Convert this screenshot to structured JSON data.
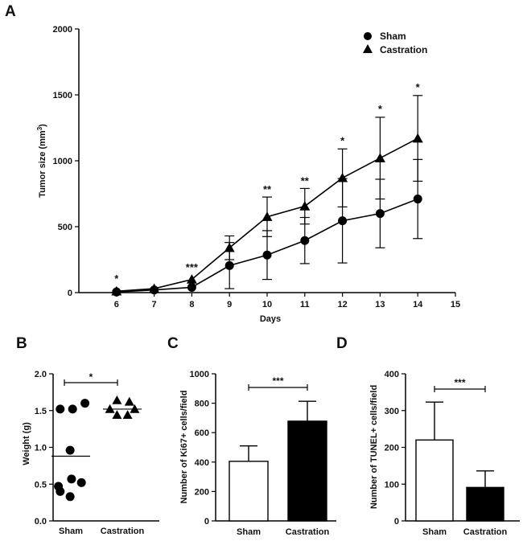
{
  "panels": {
    "a": "A",
    "b": "B",
    "c": "C",
    "d": "D"
  },
  "chart_data": [
    {
      "id": "A",
      "type": "line",
      "title": "",
      "xlabel": "Days",
      "ylabel": "Tumor size (mm3)",
      "ylabel_main": "Tumor size (mm",
      "ylabel_sup": "3",
      "ylabel_end": ")",
      "xlim": [
        5,
        15
      ],
      "ylim": [
        0,
        2000
      ],
      "xticks": [
        "6",
        "7",
        "8",
        "9",
        "10",
        "11",
        "12",
        "13",
        "14",
        "15"
      ],
      "yticks": [
        "0",
        "500",
        "1000",
        "1500",
        "2000"
      ],
      "x": [
        6,
        7,
        8,
        9,
        10,
        11,
        12,
        13,
        14
      ],
      "series": [
        {
          "name": "Sham",
          "marker": "circle",
          "values": [
            5,
            20,
            40,
            205,
            285,
            395,
            545,
            600,
            710
          ],
          "errors": [
            0,
            0,
            0,
            175,
            185,
            175,
            320,
            260,
            300
          ]
        },
        {
          "name": "Castration",
          "marker": "triangle",
          "values": [
            10,
            30,
            100,
            340,
            575,
            655,
            870,
            1020,
            1170
          ],
          "errors": [
            0,
            0,
            0,
            90,
            150,
            135,
            220,
            310,
            325
          ]
        }
      ],
      "annotations": [
        {
          "x": 6,
          "y": 80,
          "text": "*"
        },
        {
          "x": 8,
          "y": 165,
          "text": "***"
        },
        {
          "x": 10,
          "y": 755,
          "text": "**"
        },
        {
          "x": 11,
          "y": 820,
          "text": "**"
        },
        {
          "x": 12,
          "y": 1125,
          "text": "*"
        },
        {
          "x": 13,
          "y": 1365,
          "text": "*"
        },
        {
          "x": 14,
          "y": 1530,
          "text": "*"
        }
      ],
      "legend": "top-right"
    },
    {
      "id": "B",
      "type": "scatter",
      "ylabel": "Weight (g)",
      "ylim": [
        0,
        2.0
      ],
      "yticks": [
        "0.0",
        "0.5",
        "1.0",
        "1.5",
        "2.0"
      ],
      "categories": [
        "Sham",
        "Castration"
      ],
      "groups": [
        {
          "name": "Sham",
          "marker": "circle",
          "mean": 0.88,
          "points": [
            {
              "dx": -0.3,
              "y": 1.52
            },
            {
              "dx": 0.05,
              "y": 1.52
            },
            {
              "dx": 0.4,
              "y": 1.6
            },
            {
              "dx": -0.02,
              "y": 0.96
            },
            {
              "dx": 0.02,
              "y": 0.57
            },
            {
              "dx": -0.35,
              "y": 0.47
            },
            {
              "dx": 0.3,
              "y": 0.52
            },
            {
              "dx": -0.3,
              "y": 0.4
            },
            {
              "dx": -0.02,
              "y": 0.33
            }
          ]
        },
        {
          "name": "Castration",
          "marker": "triangle",
          "mean": 1.52,
          "points": [
            {
              "dx": -0.15,
              "y": 1.64
            },
            {
              "dx": 0.2,
              "y": 1.62
            },
            {
              "dx": -0.35,
              "y": 1.52
            },
            {
              "dx": 0.35,
              "y": 1.52
            },
            {
              "dx": -0.15,
              "y": 1.44
            },
            {
              "dx": 0.15,
              "y": 1.44
            }
          ]
        }
      ],
      "significance": "*"
    },
    {
      "id": "C",
      "type": "bar",
      "ylabel": "Number of Ki67+ cells/field",
      "ylim": [
        0,
        1000
      ],
      "yticks": [
        "0",
        "200",
        "400",
        "600",
        "800",
        "1000"
      ],
      "categories": [
        "Sham",
        "Castration"
      ],
      "values": [
        405,
        678
      ],
      "errors": [
        105,
        135
      ],
      "fills": [
        "#ffffff",
        "#000000"
      ],
      "significance": "***"
    },
    {
      "id": "D",
      "type": "bar",
      "ylabel": "Number of TUNEL+ cells/field",
      "ylim": [
        0,
        400
      ],
      "yticks": [
        "0",
        "100",
        "200",
        "300",
        "400"
      ],
      "categories": [
        "Sham",
        "Castration"
      ],
      "values": [
        220,
        91
      ],
      "errors": [
        103,
        45
      ],
      "fills": [
        "#ffffff",
        "#000000"
      ],
      "significance": "***"
    }
  ]
}
